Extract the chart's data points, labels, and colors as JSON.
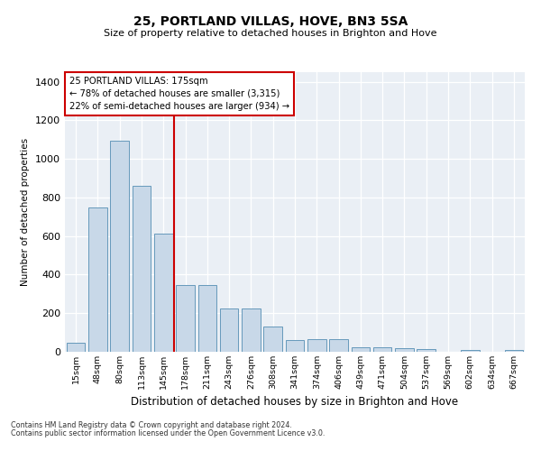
{
  "title": "25, PORTLAND VILLAS, HOVE, BN3 5SA",
  "subtitle": "Size of property relative to detached houses in Brighton and Hove",
  "xlabel": "Distribution of detached houses by size in Brighton and Hove",
  "ylabel": "Number of detached properties",
  "footnote1": "Contains HM Land Registry data © Crown copyright and database right 2024.",
  "footnote2": "Contains public sector information licensed under the Open Government Licence v3.0.",
  "bar_labels": [
    "15sqm",
    "48sqm",
    "80sqm",
    "113sqm",
    "145sqm",
    "178sqm",
    "211sqm",
    "243sqm",
    "276sqm",
    "308sqm",
    "341sqm",
    "374sqm",
    "406sqm",
    "439sqm",
    "471sqm",
    "504sqm",
    "537sqm",
    "569sqm",
    "602sqm",
    "634sqm",
    "667sqm"
  ],
  "bar_values": [
    48,
    750,
    1095,
    860,
    615,
    345,
    345,
    225,
    225,
    130,
    60,
    65,
    65,
    25,
    25,
    20,
    12,
    0,
    10,
    0,
    10
  ],
  "bar_color": "#c8d8e8",
  "bar_edge_color": "#6699bb",
  "vline_x": 4.5,
  "property_line_label": "25 PORTLAND VILLAS: 175sqm",
  "annotation_line1": "← 78% of detached houses are smaller (3,315)",
  "annotation_line2": "22% of semi-detached houses are larger (934) →",
  "annotation_box_color": "#ffffff",
  "annotation_box_edge": "#cc0000",
  "vline_color": "#cc0000",
  "bg_color": "#eaeff5",
  "ylim": [
    0,
    1450
  ],
  "yticks": [
    0,
    200,
    400,
    600,
    800,
    1000,
    1200,
    1400
  ]
}
